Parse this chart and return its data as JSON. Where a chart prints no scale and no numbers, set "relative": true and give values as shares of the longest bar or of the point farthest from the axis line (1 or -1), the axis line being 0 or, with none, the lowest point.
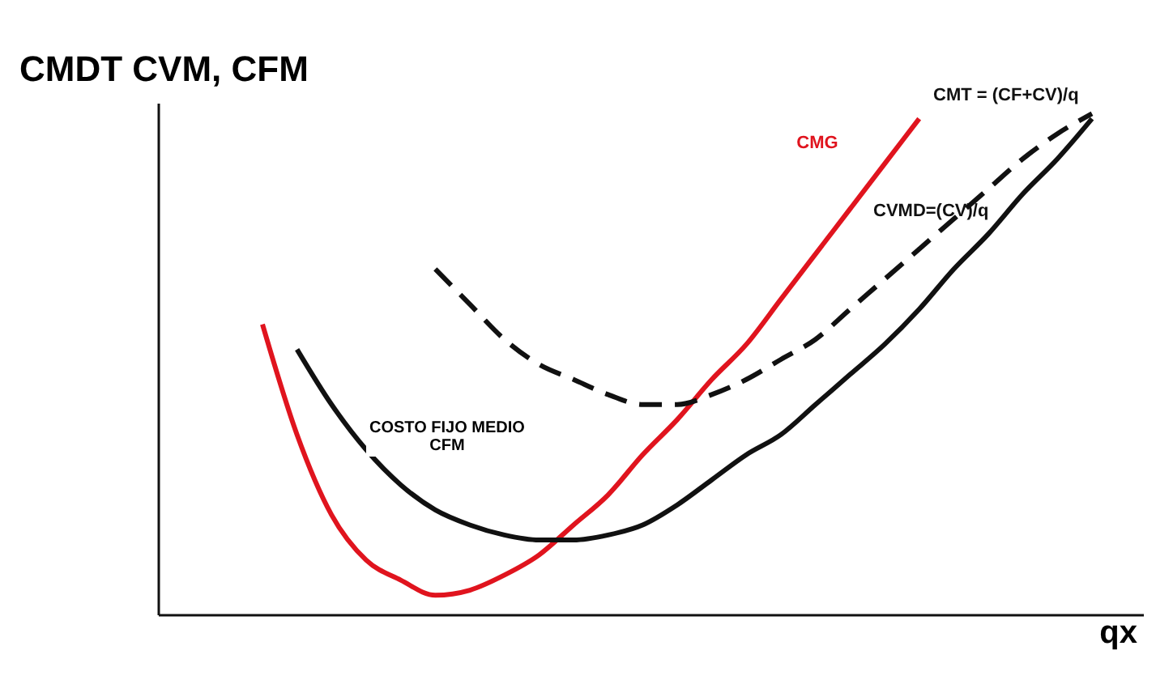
{
  "chart_data": {
    "type": "line",
    "relative": true,
    "ylabel": "CMDT  CVM, CFM",
    "xlabel": "qx",
    "categories": [
      null,
      null,
      null,
      null,
      null,
      null,
      null,
      null,
      null,
      null,
      null,
      null,
      null,
      null,
      null,
      null,
      null,
      null,
      null,
      null,
      null,
      null,
      null,
      null,
      null
    ],
    "series": [
      {
        "name": "CMG",
        "color": "#e0141e",
        "values": [
          0.58,
          0.36,
          0.2,
          0.11,
          0.07,
          0.04,
          0.05,
          0.08,
          0.12,
          0.18,
          0.24,
          0.32,
          0.39,
          0.47,
          0.54,
          0.63,
          0.72,
          0.81,
          0.9,
          0.99,
          null,
          null,
          null,
          null,
          null
        ]
      },
      {
        "name": "CMT = (CF+CV)/q",
        "color": "#111111",
        "line_style": "dashed",
        "values": [
          null,
          null,
          null,
          null,
          null,
          0.69,
          0.62,
          0.55,
          0.5,
          0.47,
          0.44,
          0.42,
          0.42,
          0.44,
          0.47,
          0.51,
          0.55,
          0.61,
          0.67,
          0.73,
          0.79,
          0.85,
          0.91,
          0.96,
          1.0
        ]
      },
      {
        "name": "CVMD=(CV)/q",
        "color": "#111111",
        "values": [
          null,
          0.53,
          0.42,
          0.33,
          0.26,
          0.21,
          0.18,
          0.16,
          0.15,
          0.15,
          0.16,
          0.18,
          0.22,
          0.27,
          0.32,
          0.36,
          0.42,
          0.48,
          0.54,
          0.61,
          0.69,
          0.76,
          0.84,
          0.91,
          0.99
        ]
      }
    ],
    "annotations": [
      "COSTO FIJO MEDIO\nCFM"
    ],
    "grid": false,
    "legend": false
  }
}
